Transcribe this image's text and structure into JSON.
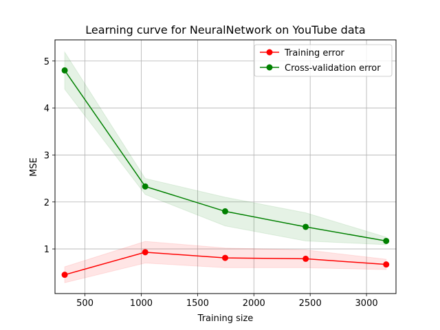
{
  "chart_data": {
    "type": "line",
    "title": "Learning curve for NeuralNetwork on YouTube data",
    "xlabel": "Training size",
    "ylabel": "MSE",
    "xlim": [
      234,
      3262
    ],
    "ylim": [
      0.05,
      5.45
    ],
    "xticks": [
      500,
      1000,
      1500,
      2000,
      2500,
      3000
    ],
    "yticks": [
      1,
      2,
      3,
      4,
      5
    ],
    "grid": true,
    "legend_position": "top-right",
    "x": [
      320,
      1035,
      1745,
      2460,
      3175
    ],
    "series": [
      {
        "name": "Training error",
        "color": "#ff0000",
        "values": [
          0.45,
          0.93,
          0.81,
          0.79,
          0.67
        ],
        "lower": [
          0.28,
          0.7,
          0.6,
          0.6,
          0.56
        ],
        "upper": [
          0.62,
          1.16,
          1.02,
          0.98,
          0.78
        ]
      },
      {
        "name": "Cross-validation error",
        "color": "#008000",
        "values": [
          4.8,
          2.33,
          1.8,
          1.47,
          1.17
        ],
        "lower": [
          4.4,
          2.16,
          1.49,
          1.17,
          1.09
        ],
        "upper": [
          5.19,
          2.5,
          2.1,
          1.77,
          1.25
        ]
      }
    ]
  }
}
